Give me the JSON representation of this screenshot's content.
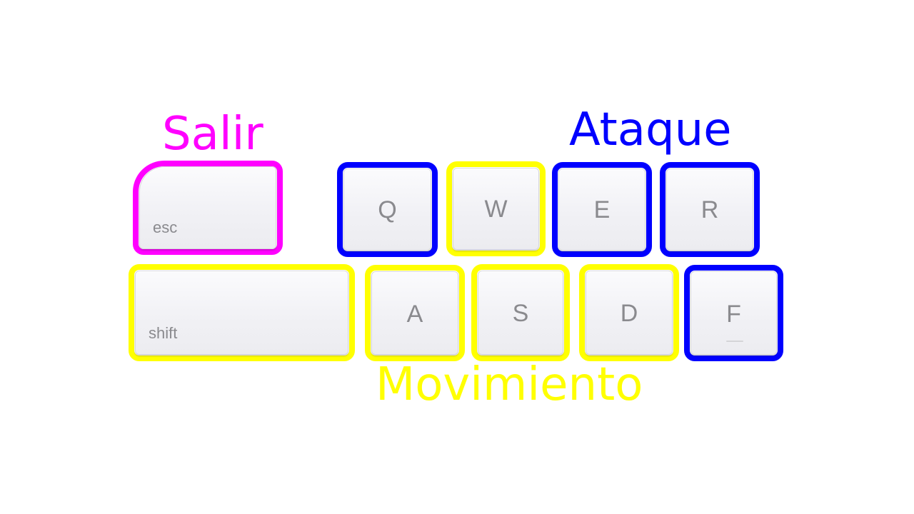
{
  "colors": {
    "salir": "#ff00ff",
    "ataque": "#0000ff",
    "movimiento": "#ffff00",
    "key_text": "#8a8a8e"
  },
  "labels": {
    "salir": "Salir",
    "ataque": "Ataque",
    "movimiento": "Movimiento"
  },
  "keys": {
    "esc": "esc",
    "q": "Q",
    "w": "W",
    "e": "E",
    "r": "R",
    "shift": "shift",
    "a": "A",
    "s": "S",
    "d": "D",
    "f": "F"
  }
}
